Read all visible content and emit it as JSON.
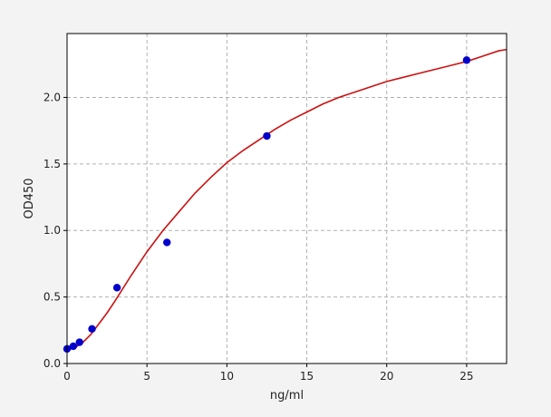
{
  "chart_data": {
    "type": "scatter",
    "title": "",
    "xlabel": "ng/ml",
    "ylabel": "OD450",
    "xlim": [
      0,
      27.5
    ],
    "ylim": [
      0,
      2.48
    ],
    "xticks": [
      0,
      5,
      10,
      15,
      20,
      25
    ],
    "xtick_labels": [
      "0",
      "5",
      "10",
      "15",
      "20",
      "25"
    ],
    "yticks": [
      0,
      0.5,
      1.0,
      1.5,
      2.0
    ],
    "ytick_labels": [
      "0.0",
      "0.5",
      "1.0",
      "1.5",
      "2.0"
    ],
    "grid": true,
    "series": [
      {
        "kind": "points",
        "color": "#0000cc",
        "x": [
          0,
          0.39,
          0.78,
          1.56,
          3.125,
          6.25,
          12.5,
          25
        ],
        "y": [
          0.11,
          0.13,
          0.16,
          0.26,
          0.57,
          0.91,
          1.71,
          2.28
        ]
      },
      {
        "kind": "fit-curve",
        "color": "#cc1111",
        "x": [
          0,
          0.5,
          1,
          1.5,
          2,
          2.5,
          3,
          4,
          5,
          6,
          7,
          8,
          9,
          10,
          11,
          12,
          13,
          14,
          15,
          16,
          17,
          18,
          19,
          20,
          21,
          22,
          23,
          24,
          25,
          26,
          27,
          27.5
        ],
        "y": [
          0.1,
          0.12,
          0.16,
          0.22,
          0.3,
          0.38,
          0.47,
          0.66,
          0.84,
          1.0,
          1.14,
          1.28,
          1.4,
          1.51,
          1.6,
          1.68,
          1.76,
          1.83,
          1.89,
          1.95,
          2.0,
          2.04,
          2.08,
          2.12,
          2.15,
          2.18,
          2.21,
          2.24,
          2.27,
          2.31,
          2.35,
          2.36
        ]
      }
    ]
  }
}
